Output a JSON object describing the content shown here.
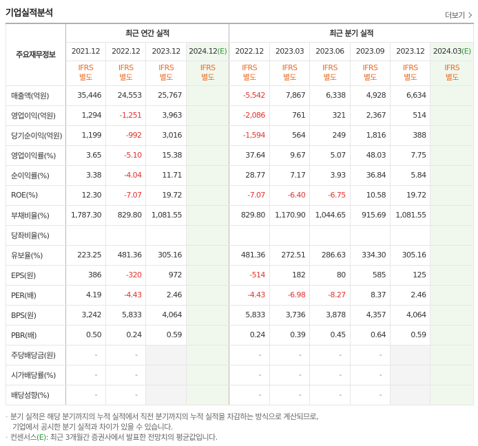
{
  "section_title": "기업실적분석",
  "more_label": "더보기",
  "more_icon": "chevron-right-icon",
  "label_header": "주요재무정보",
  "annual_header": "최근 연간 실적",
  "quarter_header": "최근 분기 실적",
  "annual_periods": [
    "2021.12",
    "2022.12",
    "2023.12",
    "2024.12"
  ],
  "quarter_periods": [
    "2022.12",
    "2023.03",
    "2023.06",
    "2023.09",
    "2023.12",
    "2024.03"
  ],
  "estimate_mark": "(E)",
  "ifrs_line1": "IFRS",
  "ifrs_line2": "별도",
  "rows": [
    {
      "label": "매출액(억원)",
      "annual": [
        "35,446",
        "24,553",
        "25,767",
        ""
      ],
      "quarter": [
        "-5,542",
        "7,867",
        "6,338",
        "4,928",
        "6,634",
        ""
      ]
    },
    {
      "label": "영업이익(억원)",
      "annual": [
        "1,294",
        "-1,251",
        "3,963",
        ""
      ],
      "quarter": [
        "-2,086",
        "761",
        "321",
        "2,367",
        "514",
        ""
      ]
    },
    {
      "label": "당기순이익(억원)",
      "annual": [
        "1,199",
        "-992",
        "3,016",
        ""
      ],
      "quarter": [
        "-1,594",
        "564",
        "249",
        "1,816",
        "388",
        ""
      ]
    },
    {
      "label": "영업이익률(%)",
      "annual": [
        "3.65",
        "-5.10",
        "15.38",
        ""
      ],
      "quarter": [
        "37.64",
        "9.67",
        "5.07",
        "48.03",
        "7.75",
        ""
      ]
    },
    {
      "label": "순이익률(%)",
      "annual": [
        "3.38",
        "-4.04",
        "11.71",
        ""
      ],
      "quarter": [
        "28.77",
        "7.17",
        "3.93",
        "36.84",
        "5.84",
        ""
      ]
    },
    {
      "label": "ROE(%)",
      "annual": [
        "12.30",
        "-7.07",
        "19.72",
        ""
      ],
      "quarter": [
        "-7.07",
        "-6.40",
        "-6.75",
        "10.58",
        "19.72",
        ""
      ]
    },
    {
      "label": "부채비율(%)",
      "annual": [
        "1,787.30",
        "829.80",
        "1,081.55",
        ""
      ],
      "quarter": [
        "829.80",
        "1,170.90",
        "1,044.65",
        "915.69",
        "1,081.55",
        ""
      ]
    },
    {
      "label": "당좌비율(%)",
      "annual": [
        "",
        "",
        "",
        ""
      ],
      "quarter": [
        "",
        "",
        "",
        "",
        "",
        ""
      ]
    },
    {
      "label": "유보율(%)",
      "annual": [
        "223.25",
        "481.36",
        "305.16",
        ""
      ],
      "quarter": [
        "481.36",
        "272.51",
        "286.63",
        "334.30",
        "305.16",
        ""
      ]
    },
    {
      "label": "EPS(원)",
      "annual": [
        "386",
        "-320",
        "972",
        ""
      ],
      "quarter": [
        "-514",
        "182",
        "80",
        "585",
        "125",
        ""
      ]
    },
    {
      "label": "PER(배)",
      "annual": [
        "4.19",
        "-4.43",
        "2.46",
        ""
      ],
      "quarter": [
        "-4.43",
        "-6.98",
        "-8.27",
        "8.37",
        "2.46",
        ""
      ]
    },
    {
      "label": "BPS(원)",
      "annual": [
        "3,242",
        "5,833",
        "4,064",
        ""
      ],
      "quarter": [
        "5,833",
        "3,736",
        "3,878",
        "4,357",
        "4,064",
        ""
      ]
    },
    {
      "label": "PBR(배)",
      "annual": [
        "0.50",
        "0.24",
        "0.59",
        ""
      ],
      "quarter": [
        "0.24",
        "0.39",
        "0.45",
        "0.64",
        "0.59",
        ""
      ]
    },
    {
      "label": "주당배당금(원)",
      "annual": [
        "-",
        "-",
        "",
        ""
      ],
      "quarter": [
        "-",
        "-",
        "-",
        "-",
        "",
        ""
      ]
    },
    {
      "label": "시가배당률(%)",
      "annual": [
        "-",
        "-",
        "",
        ""
      ],
      "quarter": [
        "-",
        "-",
        "-",
        "-",
        "",
        ""
      ]
    },
    {
      "label": "배당성향(%)",
      "annual": [
        "-",
        "-",
        "",
        ""
      ],
      "quarter": [
        "-",
        "-",
        "-",
        "-",
        "",
        ""
      ]
    }
  ],
  "notes": [
    "분기 실적은 해당 분기까지의 누적 실적에서 직전 분기까지의 누적 실적을 차감하는 방식으로 계산되므로,",
    "기업에서 공시한 분기 실적과 차이가 있을 수 있습니다."
  ],
  "consensus_note_prefix": "컨센서스",
  "consensus_note_body": ": 최근 3개월간 증권사에서 발표한 전망치의 평균값입니다.",
  "colors": {
    "negative": "#e0332e",
    "ifrs": "#e86b24",
    "estimate_bg": "#f0f8ee",
    "estimate_mark": "#2c9a3a"
  }
}
